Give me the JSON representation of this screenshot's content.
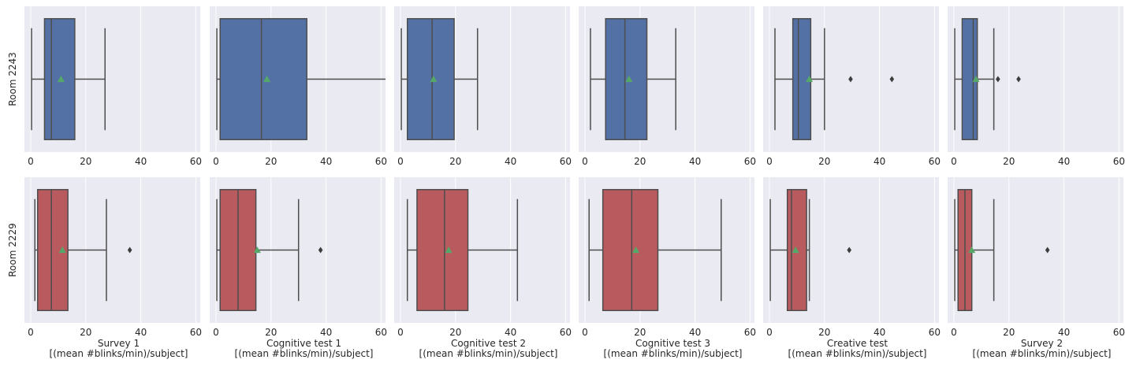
{
  "chart_data": {
    "type": "box",
    "xlim": [
      0,
      62
    ],
    "xticks": [
      0,
      20,
      40,
      60
    ],
    "grid": true,
    "rows": [
      {
        "label": "Room 2243",
        "color": "#5471a6"
      },
      {
        "label": "Room 2229",
        "color": "#b85a5e"
      }
    ],
    "columns": [
      {
        "xlabel_line1": "Survey 1",
        "xlabel_line2": "[(mean #blinks/min)/subject]"
      },
      {
        "xlabel_line1": "Cognitive test 1",
        "xlabel_line2": "[(mean #blinks/min)/subject]"
      },
      {
        "xlabel_line1": "Cognitive test 2",
        "xlabel_line2": "[(mean #blinks/min)/subject]"
      },
      {
        "xlabel_line1": "Cognitive test 3",
        "xlabel_line2": "[(mean #blinks/min)/subject]"
      },
      {
        "xlabel_line1": "Creative test",
        "xlabel_line2": "[(mean #blinks/min)/subject]"
      },
      {
        "xlabel_line1": "Survey 2",
        "xlabel_line2": "[(mean #blinks/min)/subject]"
      }
    ],
    "boxes": [
      [
        {
          "whisker_low": 0.3,
          "q1": 5,
          "median": 7.5,
          "q3": 16,
          "whisker_high": 27,
          "mean": 11,
          "outliers": []
        },
        {
          "whisker_low": 0.3,
          "q1": 1.5,
          "median": 16.5,
          "q3": 33,
          "whisker_high": 62,
          "mean": 18.5,
          "outliers": []
        },
        {
          "whisker_low": 0.3,
          "q1": 2.5,
          "median": 11.5,
          "q3": 19.5,
          "whisker_high": 28,
          "mean": 12,
          "outliers": []
        },
        {
          "whisker_low": 2,
          "q1": 7.5,
          "median": 14.5,
          "q3": 22.5,
          "whisker_high": 33,
          "mean": 16,
          "outliers": []
        },
        {
          "whisker_low": 2,
          "q1": 8.5,
          "median": 10.5,
          "q3": 15,
          "whisker_high": 20,
          "mean": 14.5,
          "outliers": [
            29.5,
            44.5
          ]
        },
        {
          "whisker_low": 0.3,
          "q1": 3,
          "median": 7,
          "q3": 8.5,
          "whisker_high": 14.5,
          "mean": 8,
          "outliers": [
            16,
            23.5
          ]
        }
      ],
      [
        {
          "whisker_low": 1.5,
          "q1": 2.5,
          "median": 7.5,
          "q3": 13.5,
          "whisker_high": 27.5,
          "mean": 11.5,
          "outliers": [
            36
          ]
        },
        {
          "whisker_low": 0.3,
          "q1": 1.5,
          "median": 8,
          "q3": 14.5,
          "whisker_high": 30,
          "mean": 15,
          "outliers": [
            38
          ]
        },
        {
          "whisker_low": 2.5,
          "q1": 6,
          "median": 16,
          "q3": 24.5,
          "whisker_high": 42.5,
          "mean": 17.5,
          "outliers": []
        },
        {
          "whisker_low": 1.5,
          "q1": 6.5,
          "median": 17,
          "q3": 26.5,
          "whisker_high": 49.5,
          "mean": 18.5,
          "outliers": []
        },
        {
          "whisker_low": 0.3,
          "q1": 6.5,
          "median": 8,
          "q3": 13.5,
          "whisker_high": 14.5,
          "mean": 9.5,
          "outliers": [
            29
          ]
        },
        {
          "whisker_low": 0.3,
          "q1": 1.5,
          "median": 4,
          "q3": 6.5,
          "whisker_high": 14.5,
          "mean": 6.5,
          "outliers": [
            34
          ]
        }
      ]
    ]
  }
}
